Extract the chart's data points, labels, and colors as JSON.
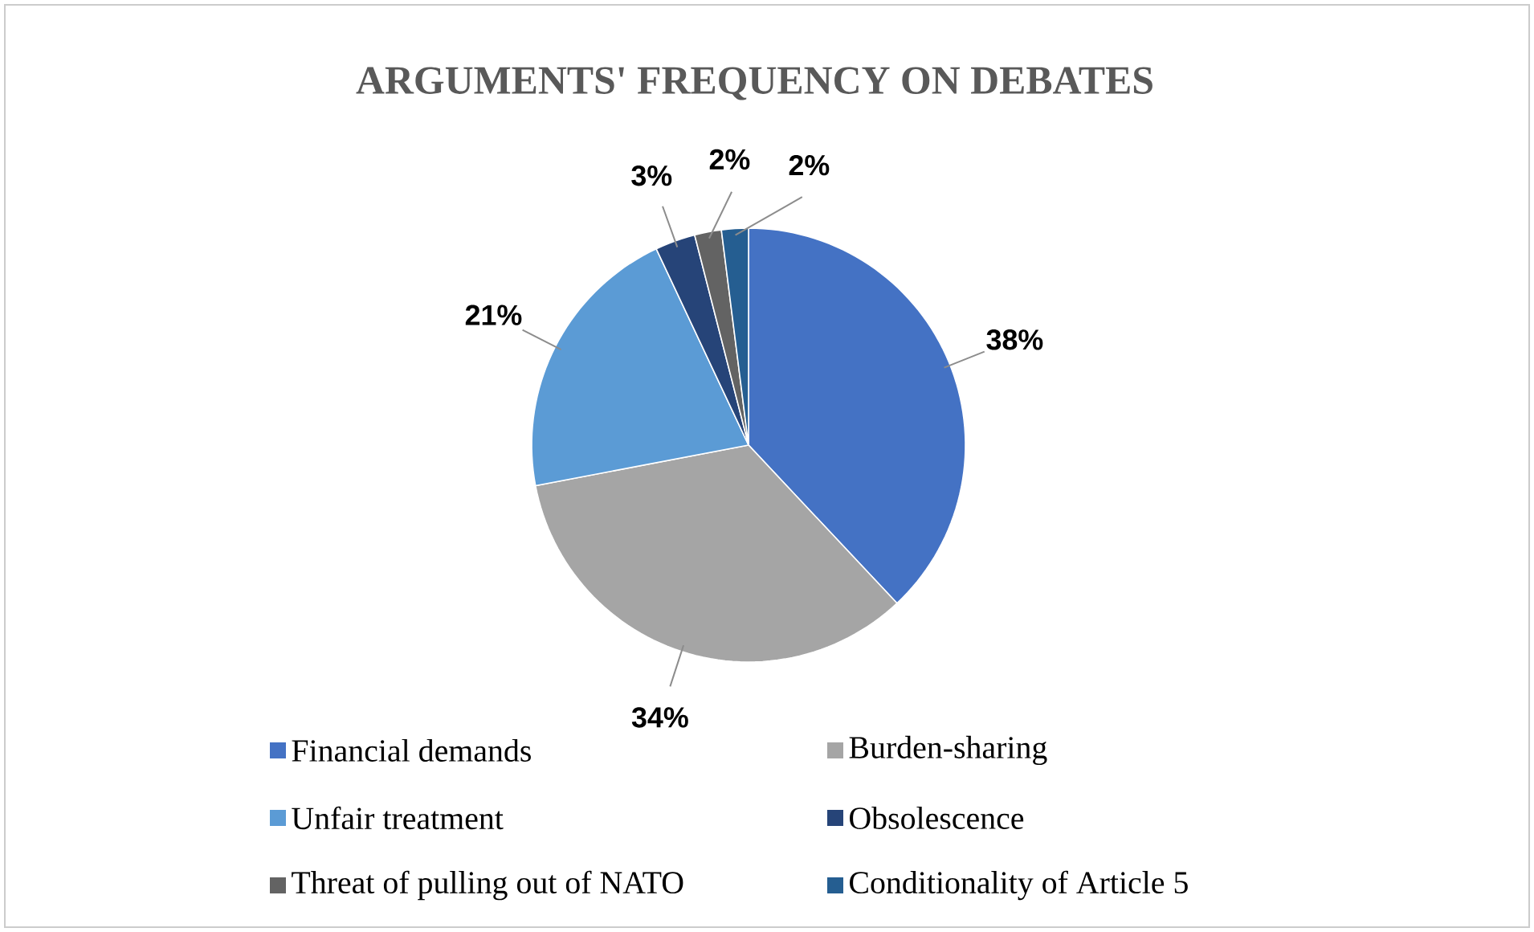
{
  "chart_data": {
    "type": "pie",
    "title": "ARGUMENTS' FREQUENCY ON DEBATES",
    "categories": [
      "Financial demands",
      "Burden-sharing",
      "Unfair treatment",
      "Obsolescence",
      "Threat of pulling out of NATO",
      "Conditionality of Article 5"
    ],
    "values": [
      38,
      34,
      21,
      3,
      2,
      2
    ],
    "colors": [
      "#4472c4",
      "#a5a5a5",
      "#5b9bd5",
      "#264478",
      "#636363",
      "#255e91"
    ],
    "value_labels": [
      "38%",
      "34%",
      "21%",
      "3%",
      "2%",
      "2%"
    ],
    "legend": "bottom"
  }
}
